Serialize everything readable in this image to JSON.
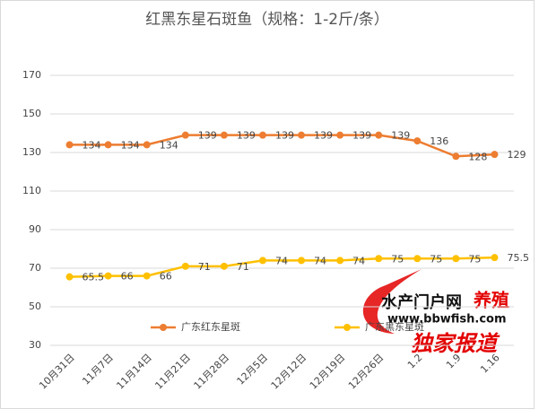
{
  "chart_data": {
    "type": "line",
    "title": "红黑东星石斑鱼（规格：1-2斤/条）",
    "categories": [
      "10月31日",
      "11月7日",
      "11月14日",
      "11月21日",
      "11月28日",
      "12月5日",
      "12月12日",
      "12月19日",
      "12月26日",
      "1.2",
      "1.9",
      "1.16"
    ],
    "series": [
      {
        "name": "广东红东星斑",
        "color": "#ed7d31",
        "values": [
          134,
          134,
          134,
          139,
          139,
          139,
          139,
          139,
          139,
          136,
          128,
          129
        ]
      },
      {
        "name": "广东黑东星斑",
        "color": "#ffc000",
        "values": [
          65.5,
          66,
          66,
          71,
          71,
          74,
          74,
          74,
          75,
          75,
          75,
          75.5
        ]
      }
    ],
    "ylim": [
      30,
      170
    ],
    "yticks": [
      30,
      50,
      70,
      90,
      110,
      130,
      150,
      170
    ],
    "grid": true,
    "legend": "bottom",
    "watermark": [
      "水产门户网",
      "养殖",
      "www.bbwfish.com",
      "独家报道"
    ]
  }
}
